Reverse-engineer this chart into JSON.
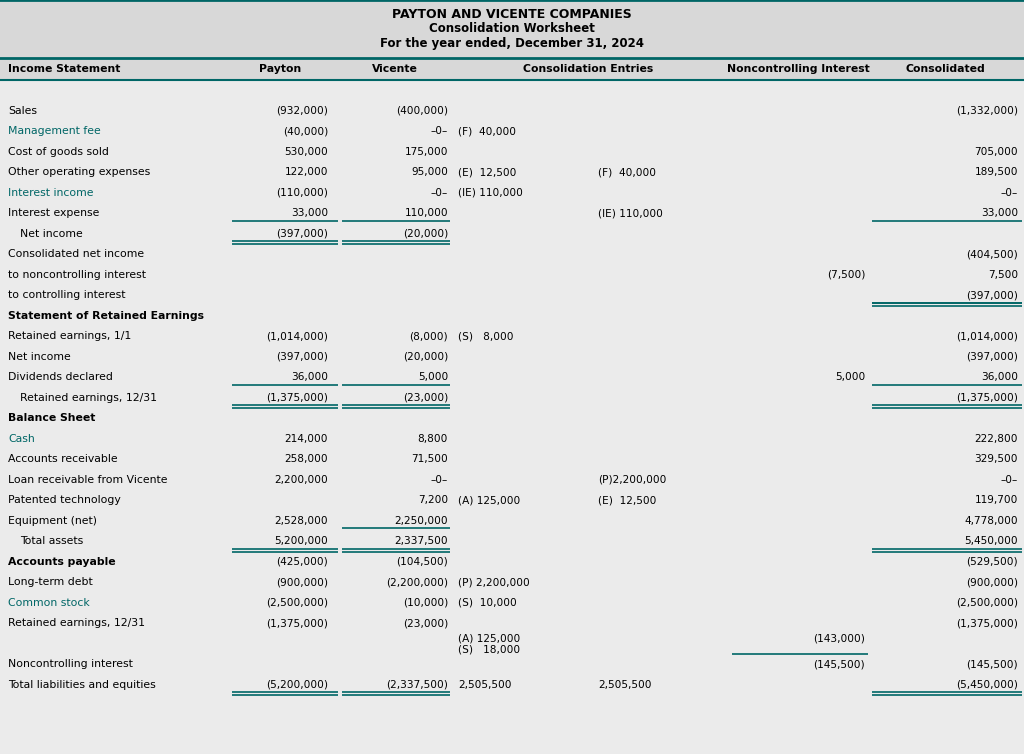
{
  "title1": "PAYTON AND VICENTE COMPANIES",
  "title2": "Consolidation Worksheet",
  "title3": "For the year ended, December 31, 2024",
  "bg_color": "#ebebeb",
  "header_bg": "#d8d8d8",
  "teal": "#006666",
  "black": "#000000",
  "rows": [
    {
      "label": "Income Statement",
      "type": "colheader",
      "payton": "Payton",
      "vicente": "Vicente",
      "ce_dr": "",
      "ce_cr": "Consolidation Entries",
      "nci": "Noncontrolling Interest",
      "consol": "Consolidated"
    },
    {
      "label": "Sales",
      "type": "data",
      "color": "black",
      "bold": false,
      "payton": "(932,000)",
      "vicente": "(400,000)",
      "ce_dr": "",
      "ce_cr": "",
      "nci": "",
      "consol": "(1,332,000)",
      "ul_p": false,
      "ul_v": false,
      "ul_c": false,
      "dul_p": false,
      "dul_v": false,
      "dul_c": false
    },
    {
      "label": "Management fee",
      "type": "data",
      "color": "teal",
      "bold": false,
      "payton": "(40,000)",
      "vicente": "–0–",
      "ce_dr": "(F)  40,000",
      "ce_cr": "",
      "nci": "",
      "consol": "",
      "ul_p": false,
      "ul_v": false,
      "ul_c": false,
      "dul_p": false,
      "dul_v": false,
      "dul_c": false
    },
    {
      "label": "Cost of goods sold",
      "type": "data",
      "color": "black",
      "bold": false,
      "payton": "530,000",
      "vicente": "175,000",
      "ce_dr": "",
      "ce_cr": "",
      "nci": "",
      "consol": "705,000",
      "ul_p": false,
      "ul_v": false,
      "ul_c": false,
      "dul_p": false,
      "dul_v": false,
      "dul_c": false
    },
    {
      "label": "Other operating expenses",
      "type": "data",
      "color": "black",
      "bold": false,
      "payton": "122,000",
      "vicente": "95,000",
      "ce_dr": "(E)  12,500",
      "ce_cr": "(F)  40,000",
      "nci": "",
      "consol": "189,500",
      "ul_p": false,
      "ul_v": false,
      "ul_c": false,
      "dul_p": false,
      "dul_v": false,
      "dul_c": false
    },
    {
      "label": "Interest income",
      "type": "data",
      "color": "teal",
      "bold": false,
      "payton": "(110,000)",
      "vicente": "–0–",
      "ce_dr": "(IE) 110,000",
      "ce_cr": "",
      "nci": "",
      "consol": "–0–",
      "ul_p": false,
      "ul_v": false,
      "ul_c": false,
      "dul_p": false,
      "dul_v": false,
      "dul_c": false
    },
    {
      "label": "Interest expense",
      "type": "data",
      "color": "black",
      "bold": false,
      "payton": "33,000",
      "vicente": "110,000",
      "ce_dr": "",
      "ce_cr": "(IE) 110,000",
      "nci": "",
      "consol": "33,000",
      "ul_p": true,
      "ul_v": true,
      "ul_c": true,
      "dul_p": false,
      "dul_v": false,
      "dul_c": false
    },
    {
      "label": "  Net income",
      "type": "data",
      "color": "black",
      "bold": false,
      "payton": "(397,000)",
      "vicente": "(20,000)",
      "ce_dr": "",
      "ce_cr": "",
      "nci": "",
      "consol": "",
      "ul_p": false,
      "ul_v": false,
      "ul_c": false,
      "dul_p": true,
      "dul_v": true,
      "dul_c": false
    },
    {
      "label": "Consolidated net income",
      "type": "data",
      "color": "black",
      "bold": false,
      "payton": "",
      "vicente": "",
      "ce_dr": "",
      "ce_cr": "",
      "nci": "",
      "consol": "(404,500)",
      "ul_p": false,
      "ul_v": false,
      "ul_c": false,
      "dul_p": false,
      "dul_v": false,
      "dul_c": false
    },
    {
      "label": "to noncontrolling interest",
      "type": "data",
      "color": "black",
      "bold": false,
      "payton": "",
      "vicente": "",
      "ce_dr": "",
      "ce_cr": "",
      "nci": "(7,500)",
      "consol": "7,500",
      "ul_p": false,
      "ul_v": false,
      "ul_c": false,
      "dul_p": false,
      "dul_v": false,
      "dul_c": false
    },
    {
      "label": "to controlling interest",
      "type": "data",
      "color": "black",
      "bold": false,
      "payton": "",
      "vicente": "",
      "ce_dr": "",
      "ce_cr": "",
      "nci": "",
      "consol": "(397,000)",
      "ul_p": false,
      "ul_v": false,
      "ul_c": true,
      "dul_p": false,
      "dul_v": false,
      "dul_c": true
    },
    {
      "label": "Statement of Retained Earnings",
      "type": "section",
      "color": "black",
      "bold": true,
      "payton": "",
      "vicente": "",
      "ce_dr": "",
      "ce_cr": "",
      "nci": "",
      "consol": "",
      "ul_p": false,
      "ul_v": false,
      "ul_c": false,
      "dul_p": false,
      "dul_v": false,
      "dul_c": false
    },
    {
      "label": "Retained earnings, 1/1",
      "type": "data",
      "color": "black",
      "bold": false,
      "payton": "(1,014,000)",
      "vicente": "(8,000)",
      "ce_dr": "(S)   8,000",
      "ce_cr": "",
      "nci": "",
      "consol": "(1,014,000)",
      "ul_p": false,
      "ul_v": false,
      "ul_c": false,
      "dul_p": false,
      "dul_v": false,
      "dul_c": false
    },
    {
      "label": "Net income",
      "type": "data",
      "color": "black",
      "bold": false,
      "payton": "(397,000)",
      "vicente": "(20,000)",
      "ce_dr": "",
      "ce_cr": "",
      "nci": "",
      "consol": "(397,000)",
      "ul_p": false,
      "ul_v": false,
      "ul_c": false,
      "dul_p": false,
      "dul_v": false,
      "dul_c": false
    },
    {
      "label": "Dividends declared",
      "type": "data",
      "color": "black",
      "bold": false,
      "payton": "36,000",
      "vicente": "5,000",
      "ce_dr": "",
      "ce_cr": "",
      "nci": "5,000",
      "consol": "36,000",
      "ul_p": true,
      "ul_v": true,
      "ul_c": true,
      "dul_p": false,
      "dul_v": false,
      "dul_c": false
    },
    {
      "label": "  Retained earnings, 12/31",
      "type": "data",
      "color": "black",
      "bold": false,
      "payton": "(1,375,000)",
      "vicente": "(23,000)",
      "ce_dr": "",
      "ce_cr": "",
      "nci": "",
      "consol": "(1,375,000)",
      "ul_p": false,
      "ul_v": false,
      "ul_c": false,
      "dul_p": true,
      "dul_v": true,
      "dul_c": true
    },
    {
      "label": "Balance Sheet",
      "type": "section",
      "color": "black",
      "bold": true,
      "payton": "",
      "vicente": "",
      "ce_dr": "",
      "ce_cr": "",
      "nci": "",
      "consol": "",
      "ul_p": false,
      "ul_v": false,
      "ul_c": false,
      "dul_p": false,
      "dul_v": false,
      "dul_c": false
    },
    {
      "label": "Cash",
      "type": "data",
      "color": "teal",
      "bold": false,
      "payton": "214,000",
      "vicente": "8,800",
      "ce_dr": "",
      "ce_cr": "",
      "nci": "",
      "consol": "222,800",
      "ul_p": false,
      "ul_v": false,
      "ul_c": false,
      "dul_p": false,
      "dul_v": false,
      "dul_c": false
    },
    {
      "label": "Accounts receivable",
      "type": "data",
      "color": "black",
      "bold": false,
      "payton": "258,000",
      "vicente": "71,500",
      "ce_dr": "",
      "ce_cr": "",
      "nci": "",
      "consol": "329,500",
      "ul_p": false,
      "ul_v": false,
      "ul_c": false,
      "dul_p": false,
      "dul_v": false,
      "dul_c": false
    },
    {
      "label": "Loan receivable from Vicente",
      "type": "data",
      "color": "black",
      "bold": false,
      "payton": "2,200,000",
      "vicente": "–0–",
      "ce_dr": "",
      "ce_cr": "(P)2,200,000",
      "nci": "",
      "consol": "–0–",
      "ul_p": false,
      "ul_v": false,
      "ul_c": false,
      "dul_p": false,
      "dul_v": false,
      "dul_c": false
    },
    {
      "label": "Patented technology",
      "type": "data",
      "color": "black",
      "bold": false,
      "payton": "",
      "vicente": "7,200",
      "ce_dr": "(A) 125,000",
      "ce_cr": "(E)  12,500",
      "nci": "",
      "consol": "119,700",
      "ul_p": false,
      "ul_v": false,
      "ul_c": false,
      "dul_p": false,
      "dul_v": false,
      "dul_c": false
    },
    {
      "label": "Equipment (net)",
      "type": "data",
      "color": "black",
      "bold": false,
      "payton": "2,528,000",
      "vicente": "2,250,000",
      "ce_dr": "",
      "ce_cr": "",
      "nci": "",
      "consol": "4,778,000",
      "ul_p": false,
      "ul_v": true,
      "ul_c": false,
      "dul_p": false,
      "dul_v": false,
      "dul_c": false
    },
    {
      "label": "  Total assets",
      "type": "data",
      "color": "black",
      "bold": false,
      "payton": "5,200,000",
      "vicente": "2,337,500",
      "ce_dr": "",
      "ce_cr": "",
      "nci": "",
      "consol": "5,450,000",
      "ul_p": false,
      "ul_v": false,
      "ul_c": false,
      "dul_p": true,
      "dul_v": true,
      "dul_c": true
    },
    {
      "label": "Accounts payable",
      "type": "data",
      "color": "black",
      "bold": true,
      "payton": "(425,000)",
      "vicente": "(104,500)",
      "ce_dr": "",
      "ce_cr": "",
      "nci": "",
      "consol": "(529,500)",
      "ul_p": false,
      "ul_v": false,
      "ul_c": false,
      "dul_p": false,
      "dul_v": false,
      "dul_c": false
    },
    {
      "label": "Long-term debt",
      "type": "data",
      "color": "black",
      "bold": false,
      "payton": "(900,000)",
      "vicente": "(2,200,000)",
      "ce_dr": "(P) 2,200,000",
      "ce_cr": "",
      "nci": "",
      "consol": "(900,000)",
      "ul_p": false,
      "ul_v": false,
      "ul_c": false,
      "dul_p": false,
      "dul_v": false,
      "dul_c": false
    },
    {
      "label": "Common stock",
      "type": "data",
      "color": "teal",
      "bold": false,
      "payton": "(2,500,000)",
      "vicente": "(10,000)",
      "ce_dr": "(S)  10,000",
      "ce_cr": "",
      "nci": "",
      "consol": "(2,500,000)",
      "ul_p": false,
      "ul_v": false,
      "ul_c": false,
      "dul_p": false,
      "dul_v": false,
      "dul_c": false
    },
    {
      "label": "Retained earnings, 12/31",
      "type": "data",
      "color": "black",
      "bold": false,
      "payton": "(1,375,000)",
      "vicente": "(23,000)",
      "ce_dr": "",
      "ce_cr": "",
      "nci": "",
      "consol": "(1,375,000)",
      "ul_p": false,
      "ul_v": false,
      "ul_c": false,
      "dul_p": false,
      "dul_v": false,
      "dul_c": false
    },
    {
      "label": "nci_special",
      "type": "special",
      "color": "black",
      "bold": false,
      "payton": "",
      "vicente": "",
      "ce_dr_1": "(A) 125,000",
      "ce_dr_2": "(S)   18,000",
      "ce_cr": "",
      "nci": "(143,000)",
      "consol": "",
      "ul_p": false,
      "ul_v": false,
      "ul_c": false,
      "dul_p": false,
      "dul_v": false,
      "dul_c": false,
      "ul_nci": true
    },
    {
      "label": "Noncontrolling interest",
      "type": "data",
      "color": "black",
      "bold": false,
      "payton": "",
      "vicente": "",
      "ce_dr": "",
      "ce_cr": "",
      "nci": "(145,500)",
      "consol": "(145,500)",
      "ul_p": false,
      "ul_v": false,
      "ul_c": false,
      "dul_p": false,
      "dul_v": false,
      "dul_c": false
    },
    {
      "label": "Total liabilities and equities",
      "type": "data",
      "color": "black",
      "bold": false,
      "payton": "(5,200,000)",
      "vicente": "(2,337,500)",
      "ce_dr": "2,505,500",
      "ce_cr": "2,505,500",
      "nci": "",
      "consol": "(5,450,000)",
      "ul_p": false,
      "ul_v": false,
      "ul_c": false,
      "dul_p": true,
      "dul_v": true,
      "dul_c": true
    }
  ]
}
